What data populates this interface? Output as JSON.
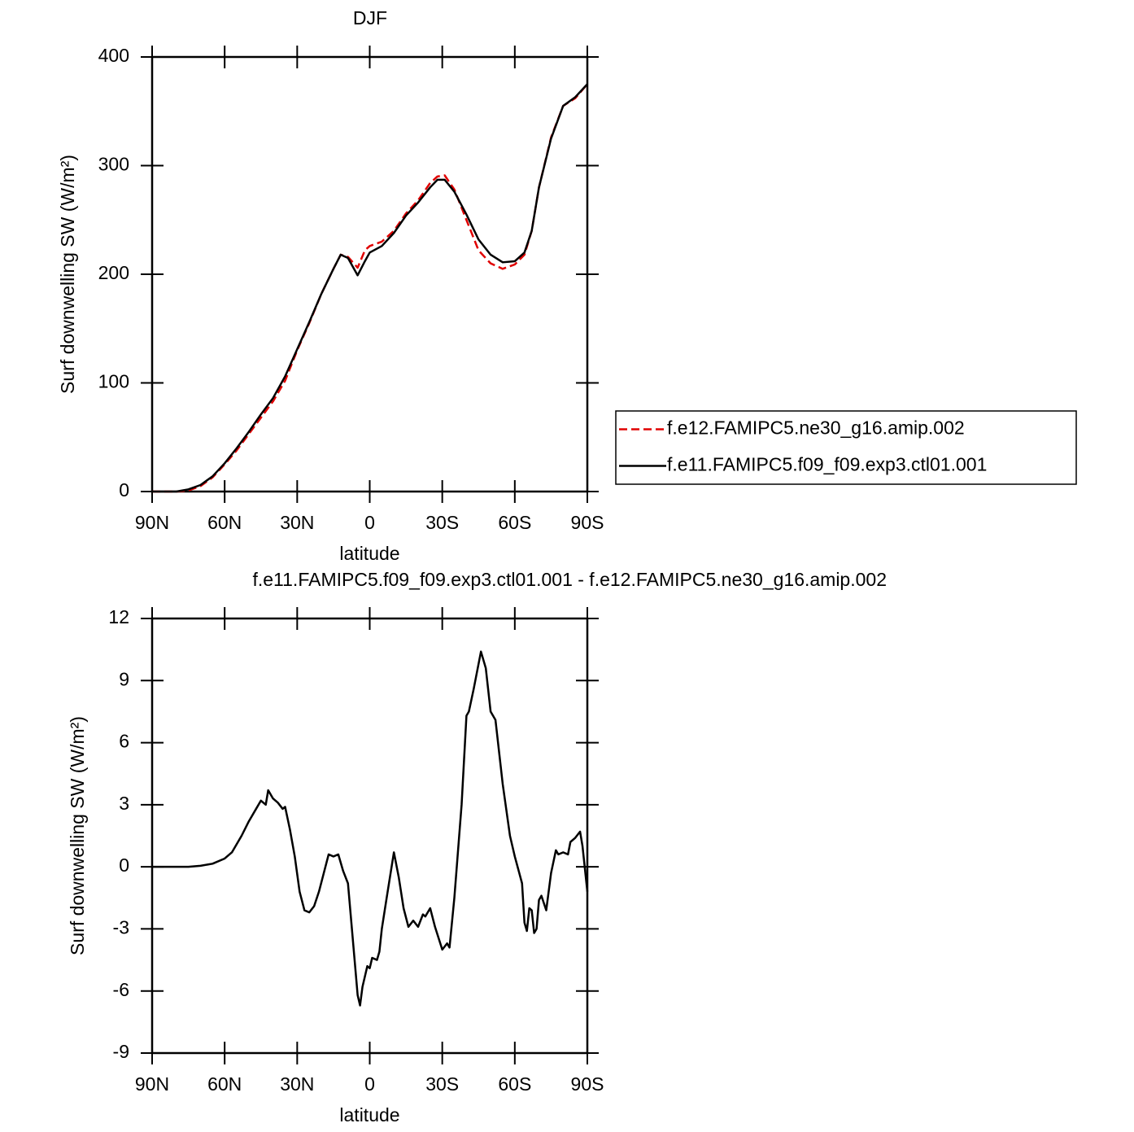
{
  "chart_data": [
    {
      "type": "line",
      "title": "DJF",
      "xlabel": "latitude",
      "ylabel": "Surf downwelling SW (W/m²)",
      "x": [
        90,
        85,
        80,
        75,
        70,
        65,
        60,
        55,
        50,
        45,
        40,
        35,
        30,
        25,
        20,
        15,
        12,
        9,
        5,
        2,
        0,
        -5,
        -10,
        -15,
        -20,
        -25,
        -28,
        -31,
        -35,
        -40,
        -45,
        -50,
        -55,
        -60,
        -64,
        -67,
        -70,
        -75,
        -80,
        -85,
        -90
      ],
      "series": [
        {
          "name": "f.e12.FAMIPC5.ne30_g16.amip.002",
          "color": "#e00000",
          "dash": true,
          "values": [
            0,
            0,
            0,
            1,
            5,
            13,
            25,
            38,
            53,
            68,
            83,
            102,
            130,
            155,
            182,
            205,
            218,
            216,
            206,
            222,
            226,
            230,
            240,
            256,
            268,
            284,
            290,
            291,
            278,
            250,
            222,
            210,
            205,
            209,
            218,
            240,
            280,
            326,
            355,
            362,
            375
          ]
        },
        {
          "name": "f.e11.FAMIPC5.f09_f09.exp3.ctl01.001",
          "color": "#000000",
          "dash": false,
          "values": [
            0,
            0,
            0,
            2,
            6,
            14,
            26,
            40,
            55,
            71,
            86,
            106,
            131,
            156,
            182,
            205,
            218,
            215,
            199,
            212,
            220,
            226,
            238,
            254,
            266,
            280,
            287,
            287,
            276,
            255,
            232,
            218,
            211,
            212,
            220,
            240,
            280,
            325,
            355,
            363,
            375
          ]
        }
      ],
      "xlim": [
        90,
        -90
      ],
      "xticks": [
        {
          "value": 90,
          "label": "90N"
        },
        {
          "value": 60,
          "label": "60N"
        },
        {
          "value": 30,
          "label": "30N"
        },
        0,
        {
          "value": -30,
          "label": "30S"
        },
        {
          "value": -60,
          "label": "60S"
        },
        {
          "value": -90,
          "label": "90S"
        }
      ],
      "ylim": [
        0,
        400
      ],
      "yticks": [
        0,
        100,
        200,
        300,
        400
      ],
      "legend": "right"
    },
    {
      "type": "line",
      "title": "f.e11.FAMIPC5.f09_f09.exp3.ctl01.001 - f.e12.FAMIPC5.ne30_g16.amip.002",
      "xlabel": "latitude",
      "ylabel": "Surf downwelling SW (W/m²)",
      "x": [
        90,
        85,
        80,
        75,
        70,
        65,
        60,
        57,
        53,
        50,
        47,
        45,
        43,
        42,
        40,
        38,
        36,
        35,
        33,
        31,
        29,
        27,
        25,
        23,
        21,
        19,
        17,
        15,
        13,
        11,
        9,
        7,
        5,
        4,
        3,
        1,
        0,
        -1,
        -3,
        -4,
        -5,
        -7,
        -10,
        -12,
        -14,
        -16,
        -18,
        -20,
        -22,
        -23,
        -25,
        -27,
        -30,
        -32,
        -33,
        -35,
        -38,
        -40,
        -41,
        -43,
        -46,
        -48,
        -50,
        -52,
        -55,
        -58,
        -60,
        -63,
        -64,
        -65,
        -66,
        -67,
        -68,
        -69,
        -70,
        -71,
        -73,
        -75,
        -77,
        -78,
        -80,
        -82,
        -83,
        -85,
        -87,
        -88,
        -90
      ],
      "series": [
        {
          "color": "#000000",
          "dash": false,
          "values": [
            0,
            0,
            0,
            0,
            0.05,
            0.15,
            0.4,
            0.7,
            1.5,
            2.2,
            2.8,
            3.2,
            3.0,
            3.7,
            3.3,
            3.1,
            2.8,
            2.9,
            1.8,
            0.5,
            -1.2,
            -2.1,
            -2.2,
            -1.9,
            -1.2,
            -0.3,
            0.6,
            0.5,
            0.6,
            -0.2,
            -0.8,
            -3.5,
            -6.2,
            -6.7,
            -5.8,
            -4.8,
            -4.9,
            -4.4,
            -4.5,
            -4.1,
            -3.0,
            -1.5,
            0.7,
            -0.5,
            -2.0,
            -2.9,
            -2.6,
            -2.9,
            -2.3,
            -2.4,
            -2.0,
            -2.9,
            -4.0,
            -3.7,
            -3.9,
            -1.5,
            3.0,
            7.3,
            7.5,
            8.6,
            10.4,
            9.6,
            7.5,
            7.1,
            4.0,
            1.5,
            0.5,
            -0.8,
            -2.7,
            -3.1,
            -2.0,
            -2.1,
            -3.2,
            -3.0,
            -1.6,
            -1.4,
            -2.1,
            -0.3,
            0.8,
            0.6,
            0.7,
            0.6,
            1.2,
            1.4,
            1.7,
            1.0,
            -1.2
          ]
        }
      ],
      "xlim": [
        90,
        -90
      ],
      "xticks": [
        {
          "value": 90,
          "label": "90N"
        },
        {
          "value": 60,
          "label": "60N"
        },
        {
          "value": 30,
          "label": "30N"
        },
        0,
        {
          "value": -30,
          "label": "30S"
        },
        {
          "value": -60,
          "label": "60S"
        },
        {
          "value": -90,
          "label": "90S"
        }
      ],
      "ylim": [
        -9,
        12
      ],
      "yticks": [
        -9,
        -6,
        -3,
        0,
        3,
        6,
        9,
        12
      ]
    }
  ]
}
